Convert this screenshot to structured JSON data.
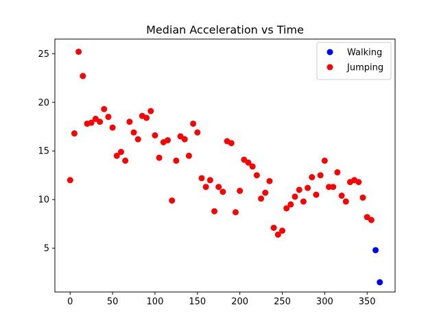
{
  "chart_data": {
    "type": "scatter",
    "title": "Median Acceleration vs Time",
    "xlabel": "",
    "ylabel": "",
    "xlim": [
      -18,
      383
    ],
    "ylim": [
      0.5,
      26.5
    ],
    "x_ticks": [
      0,
      50,
      100,
      150,
      200,
      250,
      300,
      350
    ],
    "y_ticks": [
      5,
      10,
      15,
      20,
      25
    ],
    "grid": false,
    "legend": "top-right",
    "series": [
      {
        "name": "Walking",
        "color": "#0000ff",
        "points": [
          [
            360,
            4.8
          ],
          [
            365,
            1.5
          ]
        ]
      },
      {
        "name": "Jumping",
        "color": "#ff0000",
        "points": [
          [
            0,
            12.0
          ],
          [
            5,
            16.8
          ],
          [
            10,
            25.2
          ],
          [
            15,
            22.7
          ],
          [
            20,
            17.8
          ],
          [
            25,
            17.9
          ],
          [
            30,
            18.3
          ],
          [
            35,
            18.0
          ],
          [
            40,
            19.3
          ],
          [
            45,
            18.5
          ],
          [
            50,
            17.4
          ],
          [
            55,
            14.5
          ],
          [
            60,
            14.9
          ],
          [
            65,
            14.0
          ],
          [
            70,
            18.0
          ],
          [
            75,
            16.9
          ],
          [
            80,
            16.2
          ],
          [
            85,
            18.6
          ],
          [
            90,
            18.4
          ],
          [
            95,
            19.1
          ],
          [
            100,
            16.6
          ],
          [
            105,
            14.3
          ],
          [
            110,
            15.9
          ],
          [
            115,
            16.1
          ],
          [
            120,
            9.9
          ],
          [
            125,
            14.0
          ],
          [
            130,
            16.5
          ],
          [
            135,
            16.2
          ],
          [
            140,
            14.5
          ],
          [
            145,
            17.8
          ],
          [
            150,
            16.9
          ],
          [
            155,
            12.2
          ],
          [
            160,
            11.3
          ],
          [
            165,
            12.0
          ],
          [
            170,
            8.8
          ],
          [
            175,
            11.3
          ],
          [
            180,
            10.8
          ],
          [
            185,
            16.0
          ],
          [
            190,
            15.8
          ],
          [
            195,
            8.7
          ],
          [
            200,
            10.9
          ],
          [
            205,
            14.1
          ],
          [
            210,
            13.8
          ],
          [
            215,
            13.4
          ],
          [
            220,
            12.5
          ],
          [
            225,
            10.1
          ],
          [
            230,
            10.7
          ],
          [
            235,
            11.9
          ],
          [
            240,
            7.1
          ],
          [
            245,
            6.4
          ],
          [
            250,
            6.8
          ],
          [
            255,
            9.1
          ],
          [
            260,
            9.5
          ],
          [
            265,
            10.3
          ],
          [
            270,
            11.0
          ],
          [
            275,
            9.8
          ],
          [
            280,
            11.2
          ],
          [
            285,
            12.3
          ],
          [
            290,
            10.5
          ],
          [
            295,
            12.5
          ],
          [
            300,
            14.0
          ],
          [
            305,
            11.3
          ],
          [
            310,
            11.3
          ],
          [
            315,
            12.8
          ],
          [
            320,
            10.4
          ],
          [
            325,
            9.8
          ],
          [
            330,
            11.8
          ],
          [
            335,
            12.0
          ],
          [
            340,
            11.8
          ],
          [
            345,
            10.2
          ],
          [
            350,
            8.2
          ],
          [
            355,
            7.9
          ]
        ]
      }
    ]
  }
}
